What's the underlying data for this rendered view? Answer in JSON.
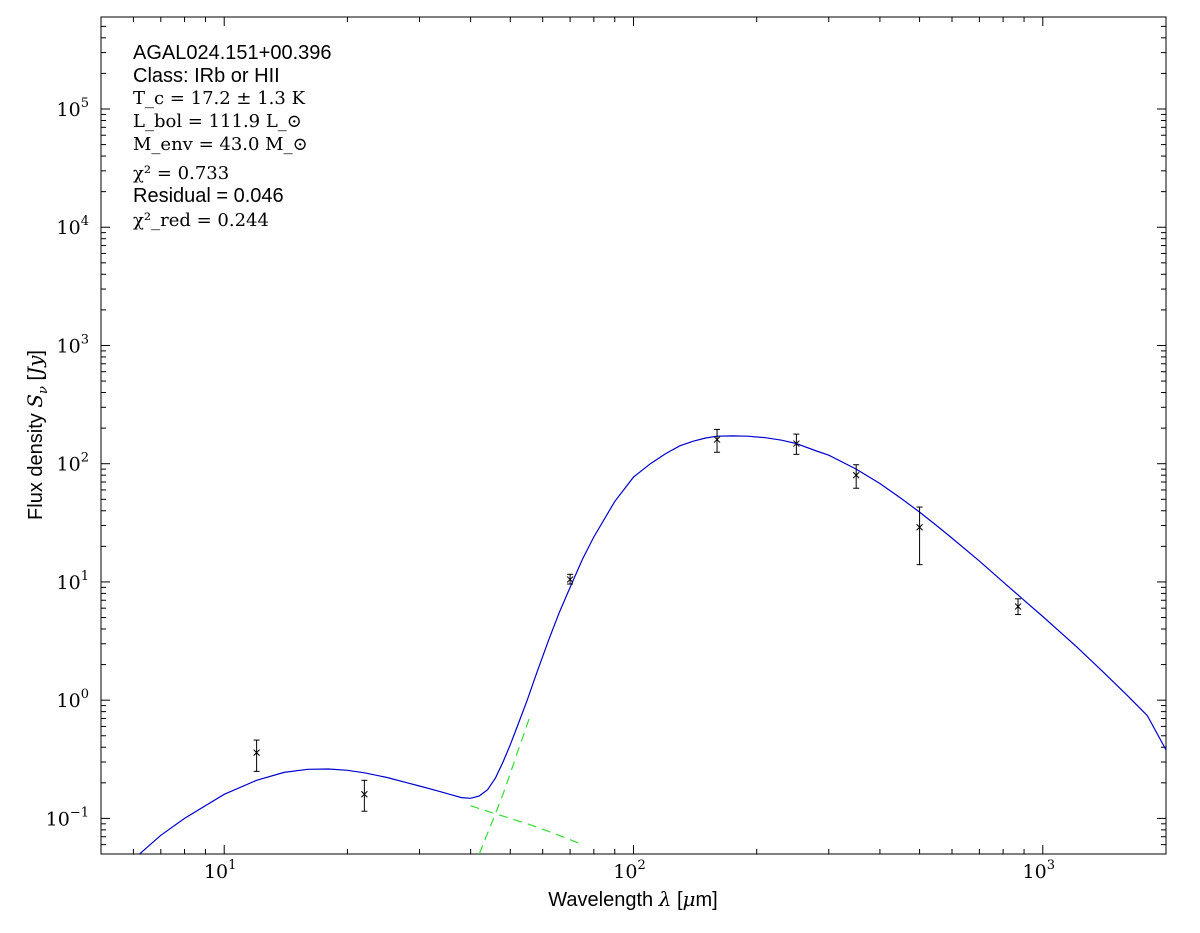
{
  "chart_data": {
    "type": "line",
    "xlabel": "Wavelength λ [μm]",
    "ylabel": "Flux density S_ν [Jy]",
    "x_scale": "log",
    "y_scale": "log",
    "xlim": [
      5,
      2000
    ],
    "ylim": [
      0.05,
      600000
    ],
    "x_ticks": [
      {
        "value": 10,
        "label": "10",
        "exp": "1"
      },
      {
        "value": 100,
        "label": "10",
        "exp": "2"
      },
      {
        "value": 1000,
        "label": "10",
        "exp": "3"
      }
    ],
    "y_ticks": [
      {
        "value": 0.1,
        "label": "10",
        "exp": "−1"
      },
      {
        "value": 1,
        "label": "10",
        "exp": "0"
      },
      {
        "value": 10,
        "label": "10",
        "exp": "1"
      },
      {
        "value": 100,
        "label": "10",
        "exp": "2"
      },
      {
        "value": 1000,
        "label": "10",
        "exp": "3"
      },
      {
        "value": 10000,
        "label": "10",
        "exp": "4"
      },
      {
        "value": 100000,
        "label": "10",
        "exp": "5"
      }
    ],
    "annotations": {
      "source": "AGAL024.151+00.396",
      "class": "Class: IRb or HII",
      "tc": "T_c = 17.2 ± 1.3 K",
      "lbol": "L_bol = 111.9 L_⊙",
      "menv": "M_env = 43.0 M_⊙",
      "chi2": "χ² = 0.733",
      "residual": "Residual = 0.046",
      "chi2red": "χ²_red = 0.244"
    },
    "observations": [
      {
        "x": 12,
        "y": 0.36,
        "yerr_low": 0.25,
        "yerr_high": 0.46
      },
      {
        "x": 22,
        "y": 0.16,
        "yerr_low": 0.115,
        "yerr_high": 0.21
      },
      {
        "x": 70,
        "y": 10.5,
        "yerr_low": 9.6,
        "yerr_high": 11.6
      },
      {
        "x": 160,
        "y": 160,
        "yerr_low": 125,
        "yerr_high": 195
      },
      {
        "x": 250,
        "y": 148,
        "yerr_low": 120,
        "yerr_high": 178
      },
      {
        "x": 350,
        "y": 80,
        "yerr_low": 62,
        "yerr_high": 98
      },
      {
        "x": 500,
        "y": 29,
        "yerr_low": 14,
        "yerr_high": 43
      },
      {
        "x": 870,
        "y": 6.2,
        "yerr_low": 5.3,
        "yerr_high": 7.2
      }
    ],
    "series": [
      {
        "kind": "total-fit",
        "color": "#0000cc",
        "dash": "solid",
        "x": [
          6,
          7,
          8,
          10,
          12,
          14,
          16,
          18,
          20,
          22,
          25,
          28,
          30,
          33,
          36,
          38,
          40,
          42,
          44,
          46,
          48,
          50,
          52,
          55,
          58,
          62,
          66,
          70,
          75,
          80,
          90,
          100,
          110,
          120,
          130,
          140,
          150,
          160,
          175,
          190,
          210,
          230,
          250,
          280,
          300,
          350,
          400,
          450,
          500,
          550,
          600,
          700,
          800,
          900,
          1000,
          1200,
          1400,
          1600,
          1800,
          2000
        ],
        "y": [
          0.045,
          0.072,
          0.1,
          0.16,
          0.21,
          0.245,
          0.26,
          0.262,
          0.255,
          0.243,
          0.222,
          0.2,
          0.188,
          0.172,
          0.158,
          0.15,
          0.148,
          0.155,
          0.175,
          0.22,
          0.3,
          0.42,
          0.6,
          1.0,
          1.7,
          3.2,
          5.6,
          9.0,
          15.5,
          24,
          48,
          77,
          100,
          122,
          142,
          155,
          165,
          171,
          172,
          171,
          166,
          158,
          148,
          128,
          118,
          90,
          68,
          51,
          39,
          30,
          23.5,
          15,
          10,
          7,
          5.1,
          2.9,
          1.75,
          1.12,
          0.74,
          0.38
        ]
      },
      {
        "kind": "warm-component",
        "color": "#33dd33",
        "dash": "dashed",
        "x": [
          40,
          45,
          50,
          55,
          60,
          65,
          70,
          75
        ],
        "y": [
          0.128,
          0.112,
          0.1,
          0.09,
          0.081,
          0.073,
          0.066,
          0.06
        ]
      },
      {
        "kind": "cold-component",
        "color": "#33dd33",
        "dash": "dashed",
        "x": [
          42,
          44,
          46,
          48,
          50,
          52,
          54,
          56
        ],
        "y": [
          0.05,
          0.075,
          0.11,
          0.16,
          0.24,
          0.36,
          0.52,
          0.75
        ]
      }
    ]
  }
}
